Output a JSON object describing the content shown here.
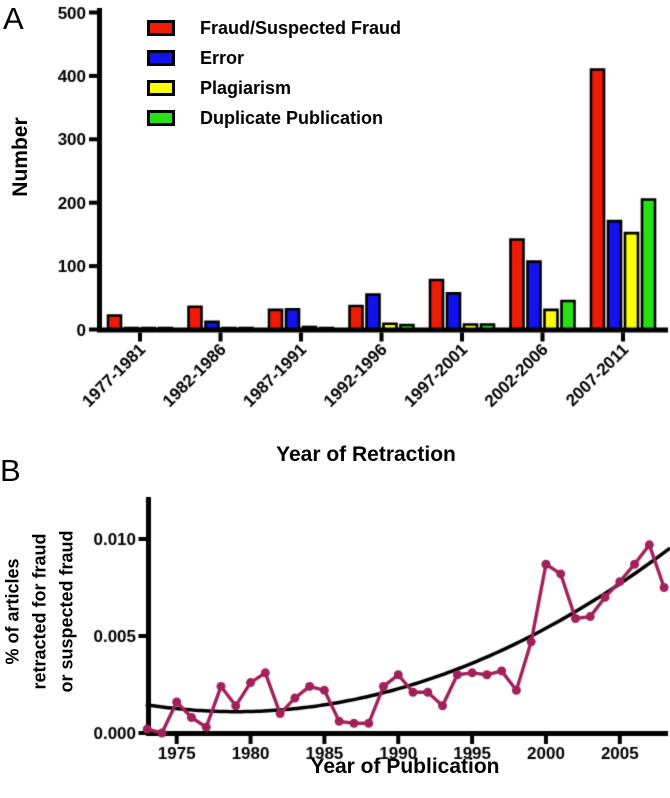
{
  "figure": {
    "panel_a_label": "A",
    "panel_b_label": "B"
  },
  "chart_data": [
    {
      "panel": "A",
      "type": "bar",
      "title": "",
      "xlabel": "Year of Retraction",
      "ylabel": "Number",
      "ylim": [
        0,
        500
      ],
      "yticks": [
        0,
        100,
        200,
        300,
        400,
        500
      ],
      "grid": false,
      "legend_position": "top-left",
      "categories": [
        "1977-1981",
        "1982-1986",
        "1987-1991",
        "1992-1996",
        "1997-2001",
        "2002-2006",
        "2007-2011"
      ],
      "series": [
        {
          "name": "Fraud/Suspected Fraud",
          "color": "#ee1b07",
          "values": [
            22,
            36,
            31,
            37,
            78,
            142,
            410
          ]
        },
        {
          "name": "Error",
          "color": "#1212ee",
          "values": [
            2,
            12,
            32,
            55,
            57,
            107,
            171
          ]
        },
        {
          "name": "Plagiarism",
          "color": "#ffff00",
          "values": [
            0,
            1,
            4,
            9,
            8,
            31,
            152
          ]
        },
        {
          "name": "Duplicate Publication",
          "color": "#26e214",
          "values": [
            0,
            1,
            2,
            7,
            8,
            45,
            205
          ]
        }
      ]
    },
    {
      "panel": "B",
      "type": "line",
      "title": "",
      "xlabel": "Year of Publication",
      "ylabel_lines": [
        "% of articles",
        "retracted for fraud",
        "or suspected fraud"
      ],
      "ylim": [
        0,
        0.0122
      ],
      "yticks": [
        0,
        0.005,
        0.01
      ],
      "ytick_labels": [
        "0.000",
        "0.005",
        "0.010"
      ],
      "xticks": [
        1975,
        1980,
        1985,
        1990,
        1995,
        2000,
        2005
      ],
      "grid": false,
      "series_name": "% of articles retracted for fraud or suspected fraud",
      "series_color": "#a2215a",
      "marker": "circle",
      "x": [
        1973,
        1974,
        1975,
        1976,
        1977,
        1978,
        1979,
        1980,
        1981,
        1982,
        1983,
        1984,
        1985,
        1986,
        1987,
        1988,
        1989,
        1990,
        1991,
        1992,
        1993,
        1994,
        1995,
        1996,
        1997,
        1998,
        1999,
        2000,
        2001,
        2002,
        2003,
        2004,
        2005,
        2006,
        2007,
        2008
      ],
      "values": [
        0.0002,
        0.0,
        0.0016,
        0.0008,
        0.0003,
        0.0024,
        0.0014,
        0.0026,
        0.0031,
        0.001,
        0.0018,
        0.0024,
        0.0022,
        0.0006,
        0.0005,
        0.0005,
        0.0024,
        0.003,
        0.0021,
        0.0021,
        0.0014,
        0.003,
        0.0031,
        0.003,
        0.0032,
        0.0022,
        0.0047,
        0.0087,
        0.0082,
        0.0059,
        0.006,
        0.007,
        0.0078,
        0.0087,
        0.0097,
        0.0075
      ],
      "trend_curve": {
        "type": "quadratic_fit",
        "color": "#000000",
        "vertex_year": 1979,
        "min_value": 0.0011,
        "coefficient": 9.75e-06,
        "x_start": 1972.9,
        "x_end": 2008.6
      }
    }
  ]
}
